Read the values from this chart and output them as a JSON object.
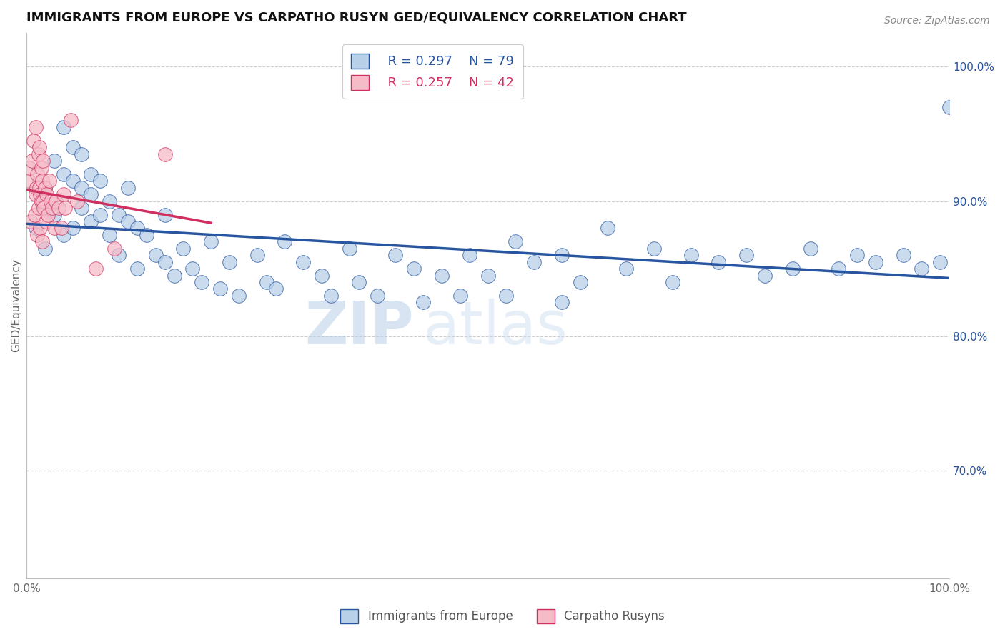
{
  "title": "IMMIGRANTS FROM EUROPE VS CARPATHO RUSYN GED/EQUIVALENCY CORRELATION CHART",
  "source": "Source: ZipAtlas.com",
  "ylabel": "GED/Equivalency",
  "xlim": [
    0.0,
    1.0
  ],
  "ylim": [
    62.0,
    102.5
  ],
  "legend_blue_r": "R = 0.297",
  "legend_blue_n": "N = 79",
  "legend_pink_r": "R = 0.257",
  "legend_pink_n": "N = 42",
  "blue_color": "#b8d0e8",
  "pink_color": "#f5bcc8",
  "blue_line_color": "#2855a0",
  "pink_line_color": "#d03060",
  "watermark_zip": "ZIP",
  "watermark_atlas": "atlas",
  "blue_scatter_x": [
    0.01,
    0.02,
    0.02,
    0.03,
    0.03,
    0.04,
    0.04,
    0.04,
    0.05,
    0.05,
    0.05,
    0.06,
    0.06,
    0.06,
    0.07,
    0.07,
    0.07,
    0.08,
    0.08,
    0.09,
    0.09,
    0.1,
    0.1,
    0.11,
    0.11,
    0.12,
    0.12,
    0.13,
    0.14,
    0.15,
    0.15,
    0.16,
    0.17,
    0.18,
    0.19,
    0.2,
    0.21,
    0.22,
    0.23,
    0.25,
    0.26,
    0.27,
    0.28,
    0.3,
    0.32,
    0.33,
    0.35,
    0.36,
    0.38,
    0.4,
    0.42,
    0.43,
    0.45,
    0.47,
    0.48,
    0.5,
    0.52,
    0.53,
    0.55,
    0.58,
    0.58,
    0.6,
    0.63,
    0.65,
    0.68,
    0.7,
    0.72,
    0.75,
    0.78,
    0.8,
    0.83,
    0.85,
    0.88,
    0.9,
    0.92,
    0.95,
    0.97,
    0.99,
    1.0
  ],
  "blue_scatter_y": [
    88.0,
    86.5,
    91.0,
    89.0,
    93.0,
    87.5,
    92.0,
    95.5,
    88.0,
    91.5,
    94.0,
    89.5,
    91.0,
    93.5,
    88.5,
    90.5,
    92.0,
    89.0,
    91.5,
    87.5,
    90.0,
    86.0,
    89.0,
    88.5,
    91.0,
    85.0,
    88.0,
    87.5,
    86.0,
    85.5,
    89.0,
    84.5,
    86.5,
    85.0,
    84.0,
    87.0,
    83.5,
    85.5,
    83.0,
    86.0,
    84.0,
    83.5,
    87.0,
    85.5,
    84.5,
    83.0,
    86.5,
    84.0,
    83.0,
    86.0,
    85.0,
    82.5,
    84.5,
    83.0,
    86.0,
    84.5,
    83.0,
    87.0,
    85.5,
    82.5,
    86.0,
    84.0,
    88.0,
    85.0,
    86.5,
    84.0,
    86.0,
    85.5,
    86.0,
    84.5,
    85.0,
    86.5,
    85.0,
    86.0,
    85.5,
    86.0,
    85.0,
    85.5,
    97.0
  ],
  "pink_scatter_x": [
    0.002,
    0.003,
    0.005,
    0.006,
    0.008,
    0.009,
    0.01,
    0.01,
    0.011,
    0.012,
    0.012,
    0.013,
    0.013,
    0.014,
    0.014,
    0.015,
    0.015,
    0.016,
    0.016,
    0.017,
    0.017,
    0.018,
    0.018,
    0.019,
    0.02,
    0.021,
    0.022,
    0.023,
    0.025,
    0.026,
    0.028,
    0.03,
    0.032,
    0.035,
    0.038,
    0.04,
    0.042,
    0.048,
    0.055,
    0.075,
    0.095,
    0.15
  ],
  "pink_scatter_y": [
    91.5,
    92.5,
    88.5,
    93.0,
    94.5,
    89.0,
    90.5,
    95.5,
    91.0,
    92.0,
    87.5,
    93.5,
    89.5,
    91.0,
    94.0,
    90.5,
    88.0,
    92.5,
    90.0,
    91.5,
    87.0,
    90.0,
    93.0,
    89.5,
    91.0,
    88.5,
    90.5,
    89.0,
    91.5,
    90.0,
    89.5,
    88.0,
    90.0,
    89.5,
    88.0,
    90.5,
    89.5,
    96.0,
    90.0,
    85.0,
    86.5,
    93.5
  ]
}
